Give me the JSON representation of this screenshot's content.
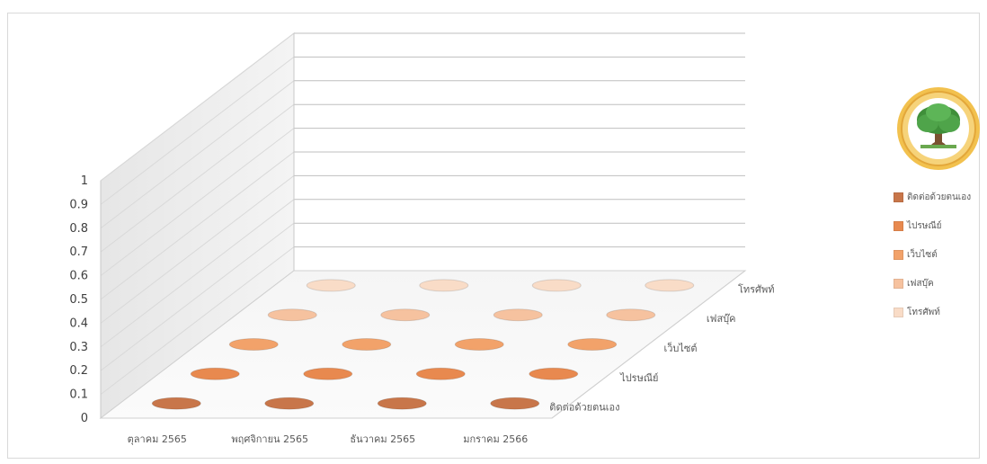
{
  "chart_data": {
    "type": "3d-area",
    "categories": [
      "ตุลาคม 2565",
      "พฤศจิกายน 2565",
      "ธันวาคม 2565",
      "มกราคม 2566"
    ],
    "series": [
      {
        "name": "ติดต่อด้วยตนเอง",
        "values": [
          0,
          0,
          0,
          0
        ],
        "color": "#c8764a"
      },
      {
        "name": "ไปรษณีย์",
        "values": [
          0,
          0,
          0,
          0
        ],
        "color": "#e8894f"
      },
      {
        "name": "เว็บไซต์",
        "values": [
          0,
          0,
          0,
          0
        ],
        "color": "#f2a26a"
      },
      {
        "name": "เฟสบุ๊ค",
        "values": [
          0,
          0,
          0,
          0
        ],
        "color": "#f6c29f"
      },
      {
        "name": "โทรศัพท์",
        "values": [
          0,
          0,
          0,
          0
        ],
        "color": "#f9dcc7"
      }
    ],
    "y_ticks": [
      "0",
      "0.1",
      "0.2",
      "0.3",
      "0.4",
      "0.5",
      "0.6",
      "0.7",
      "0.8",
      "0.9",
      "1"
    ],
    "ylim": [
      0,
      1
    ],
    "grid": true,
    "legend_position": "right"
  },
  "logo": {
    "name": "tree-seal-logo"
  }
}
